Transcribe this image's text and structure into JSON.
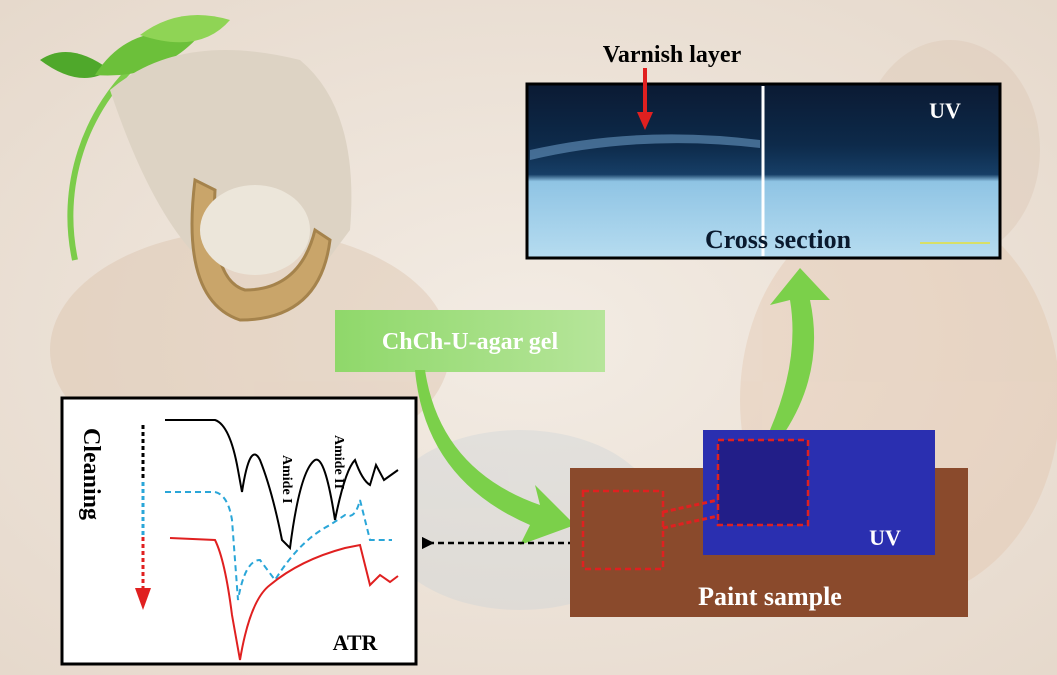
{
  "cross_section": {
    "annotation": "Varnish layer",
    "uv_label": "UV",
    "label": "Cross section"
  },
  "gel": {
    "label": "ChCh-U-agar gel"
  },
  "atr": {
    "arrow_label": "Cleaning",
    "peaks": [
      "Amide I",
      "Amide II"
    ],
    "label": "ATR"
  },
  "paint_sample": {
    "uv_label": "UV",
    "label": "Paint sample"
  }
}
